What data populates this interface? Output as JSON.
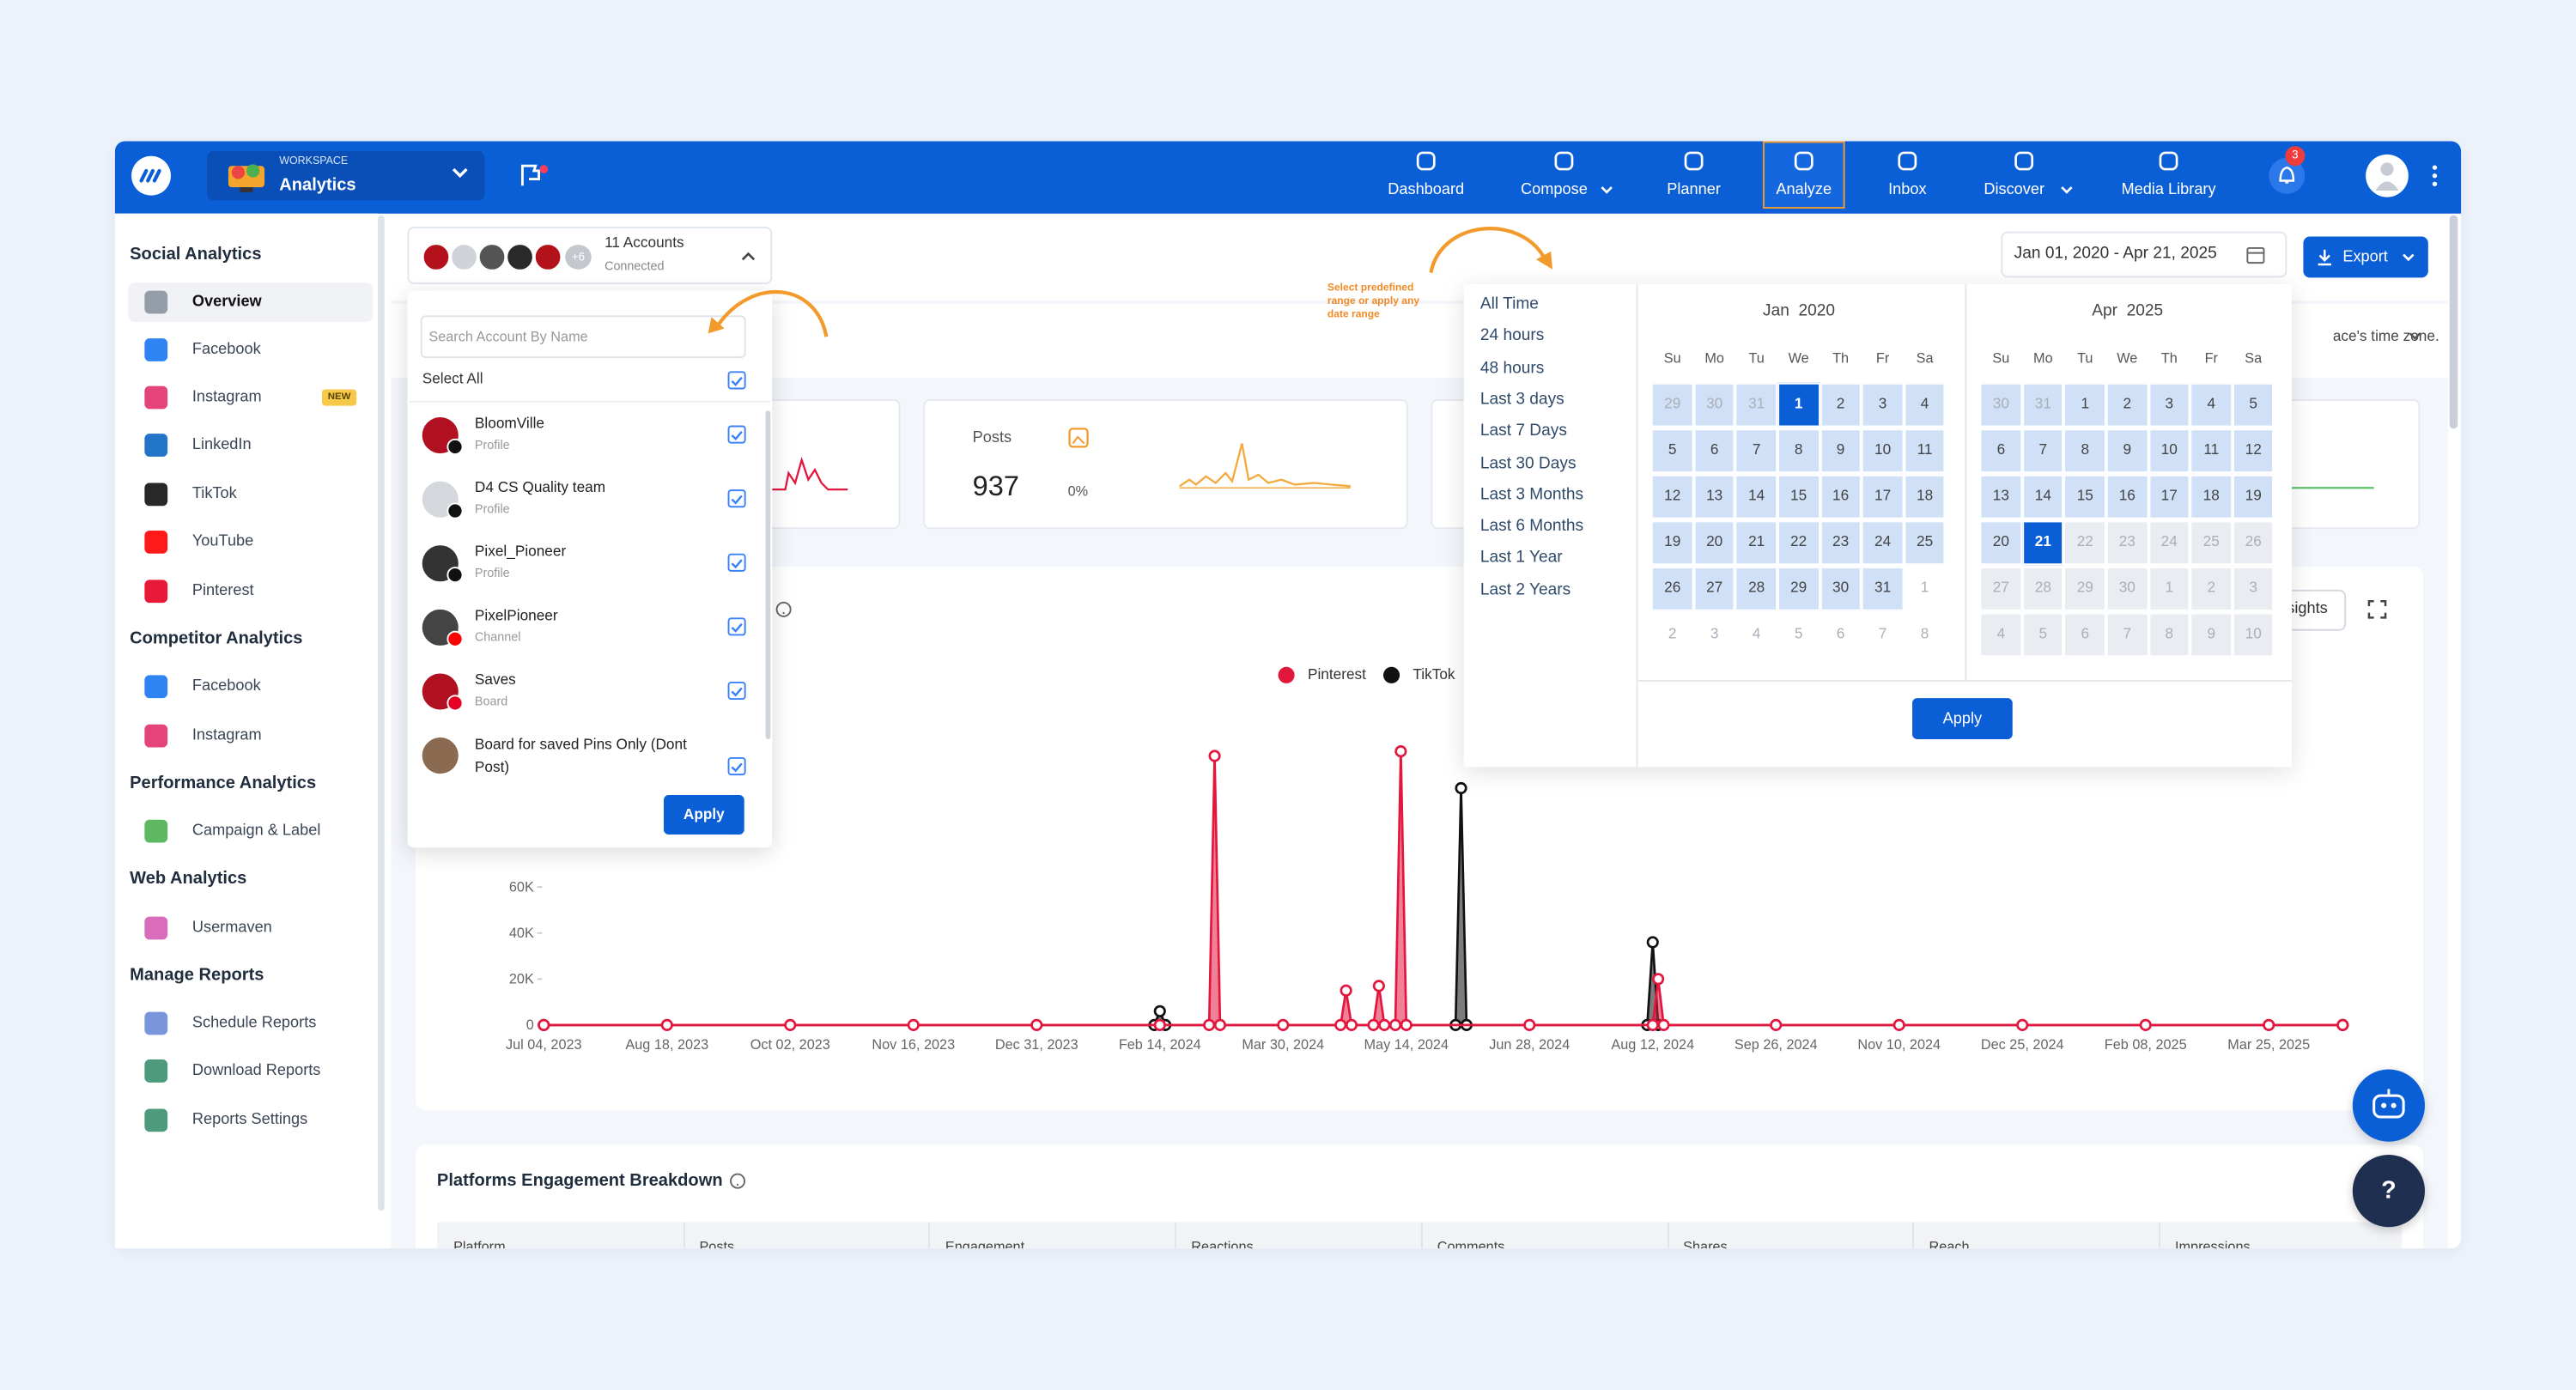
{
  "header": {
    "workspace_label": "WORKSPACE",
    "workspace_name": "Analytics",
    "nav": [
      "Dashboard",
      "Compose",
      "Planner",
      "Analyze",
      "Inbox",
      "Discover",
      "Media Library"
    ],
    "notifications": 3
  },
  "sidebar": [
    {
      "title": "Social Analytics",
      "items": [
        {
          "label": "Overview"
        },
        {
          "label": "Facebook"
        },
        {
          "label": "Instagram",
          "badge": "NEW"
        },
        {
          "label": "LinkedIn"
        },
        {
          "label": "TikTok"
        },
        {
          "label": "YouTube"
        },
        {
          "label": "Pinterest"
        }
      ]
    },
    {
      "title": "Competitor Analytics",
      "items": [
        {
          "label": "Facebook"
        },
        {
          "label": "Instagram"
        }
      ]
    },
    {
      "title": "Performance Analytics",
      "items": [
        {
          "label": "Campaign & Label"
        }
      ]
    },
    {
      "title": "Web Analytics",
      "items": [
        {
          "label": "Usermaven"
        }
      ]
    },
    {
      "title": "Manage Reports",
      "items": [
        {
          "label": "Schedule Reports"
        },
        {
          "label": "Download Reports"
        },
        {
          "label": "Reports Settings"
        }
      ]
    }
  ],
  "accounts": {
    "count": "11 Accounts",
    "status": "Connected",
    "more": "+6",
    "search_placeholder": "Search Account By Name",
    "select_all": "Select All",
    "list": [
      {
        "name": "BloomVille",
        "type": "Profile"
      },
      {
        "name": "D4 CS Quality team",
        "type": "Profile"
      },
      {
        "name": "Pixel_Pioneer",
        "type": "Profile"
      },
      {
        "name": "PixelPioneer",
        "type": "Channel"
      },
      {
        "name": "Saves",
        "type": "Board"
      },
      {
        "name": "Board for saved Pins Only (Dont Post)"
      }
    ],
    "apply": "Apply"
  },
  "date_filter": {
    "range": "Jan 01, 2020 - Apr 21, 2025",
    "export": "Export",
    "timezone_note": "ace's time zone.",
    "hint": "Select predefined range or apply any date range",
    "presets": [
      "All Time",
      "24 hours",
      "48 hours",
      "Last 3 days",
      "Last 7 Days",
      "Last 30 Days",
      "Last 3 Months",
      "Last 6 Months",
      "Last 1 Year",
      "Last 2 Years"
    ],
    "weekdays": [
      "Su",
      "Mo",
      "Tu",
      "We",
      "Th",
      "Fr",
      "Sa"
    ],
    "calendars": [
      {
        "title": "Jan  2020",
        "days": [
          [
            29,
            30,
            31,
            1,
            2,
            3,
            4
          ],
          [
            5,
            6,
            7,
            8,
            9,
            10,
            11
          ],
          [
            12,
            13,
            14,
            15,
            16,
            17,
            18
          ],
          [
            19,
            20,
            21,
            22,
            23,
            24,
            25
          ],
          [
            26,
            27,
            28,
            29,
            30,
            31,
            1
          ],
          [
            2,
            3,
            4,
            5,
            6,
            7,
            8
          ]
        ]
      },
      {
        "title": "Apr  2025",
        "days": [
          [
            30,
            31,
            1,
            2,
            3,
            4,
            5
          ],
          [
            6,
            7,
            8,
            9,
            10,
            11,
            12
          ],
          [
            13,
            14,
            15,
            16,
            17,
            18,
            19
          ],
          [
            20,
            21,
            22,
            23,
            24,
            25,
            26
          ],
          [
            27,
            28,
            29,
            30,
            1,
            2,
            3
          ],
          [
            4,
            5,
            6,
            7,
            8,
            9,
            10
          ]
        ]
      }
    ],
    "apply": "Apply"
  },
  "cards": {
    "posts_label": "Posts",
    "posts_value": 937,
    "posts_change": "0%"
  },
  "engagement_chart": {
    "type": "line",
    "xlim": [
      "Jul 04, 2023",
      "Apr 21, 2025"
    ],
    "xticks": [
      "Jul 04, 2023",
      "Aug 18, 2023",
      "Oct 02, 2023",
      "Nov 16, 2023",
      "Dec 31, 2023",
      "Feb 14, 2024",
      "Mar 30, 2024",
      "May 14, 2024",
      "Jun 28, 2024",
      "Aug 12, 2024",
      "Sep 26, 2024",
      "Nov 10, 2024",
      "Dec 25, 2024",
      "Feb 08, 2025",
      "Mar 25, 2025"
    ],
    "ylim": [
      0,
      120000
    ],
    "yticks": [
      0,
      {
        "value": 20000,
        "label": "20K"
      },
      {
        "value": 40000,
        "label": "40K"
      },
      {
        "value": 60000,
        "label": "60K"
      }
    ],
    "series": [
      {
        "name": "Pinterest",
        "color": "#e3173e",
        "x": [
          "Jul 04, 2023",
          "Aug 18, 2023",
          "Oct 02, 2023",
          "Nov 16, 2023",
          "Dec 31, 2023",
          "Feb 14, 2024",
          "Mar 03, 2024",
          "Mar 05, 2024",
          "Mar 07, 2024",
          "Mar 30, 2024",
          "Apr 20, 2024",
          "Apr 22, 2024",
          "Apr 24, 2024",
          "May 02, 2024",
          "May 04, 2024",
          "May 06, 2024",
          "May 10, 2024",
          "May 12, 2024",
          "May 14, 2024",
          "Jun 28, 2024",
          "Aug 12, 2024",
          "Aug 14, 2024",
          "Aug 16, 2024",
          "Sep 26, 2024",
          "Nov 10, 2024",
          "Dec 25, 2024",
          "Feb 08, 2025",
          "Mar 25, 2025",
          "Apr 21, 2025"
        ],
        "values": [
          0,
          0,
          0,
          0,
          0,
          0,
          0,
          117000,
          0,
          0,
          0,
          15000,
          0,
          0,
          17000,
          0,
          0,
          119000,
          0,
          0,
          0,
          20000,
          0,
          0,
          0,
          0,
          0,
          0,
          0
        ]
      },
      {
        "name": "TikTok",
        "color": "#111111",
        "x": [
          "Jul 04, 2023",
          "Feb 12, 2024",
          "Feb 14, 2024",
          "Feb 16, 2024",
          "Jun 01, 2024",
          "Jun 03, 2024",
          "Jun 05, 2024",
          "Aug 10, 2024",
          "Aug 12, 2024",
          "Aug 14, 2024",
          "Apr 21, 2025"
        ],
        "values": [
          0,
          0,
          6000,
          0,
          0,
          103000,
          0,
          0,
          36000,
          0,
          0
        ]
      }
    ],
    "insights_button": "sights"
  },
  "breakdown": {
    "title": "Platforms Engagement Breakdown",
    "columns": [
      "Platform",
      "Posts",
      "Engagement",
      "Reactions",
      "Comments",
      "Shares",
      "Reach",
      "Impressions"
    ]
  },
  "help_button": "?"
}
